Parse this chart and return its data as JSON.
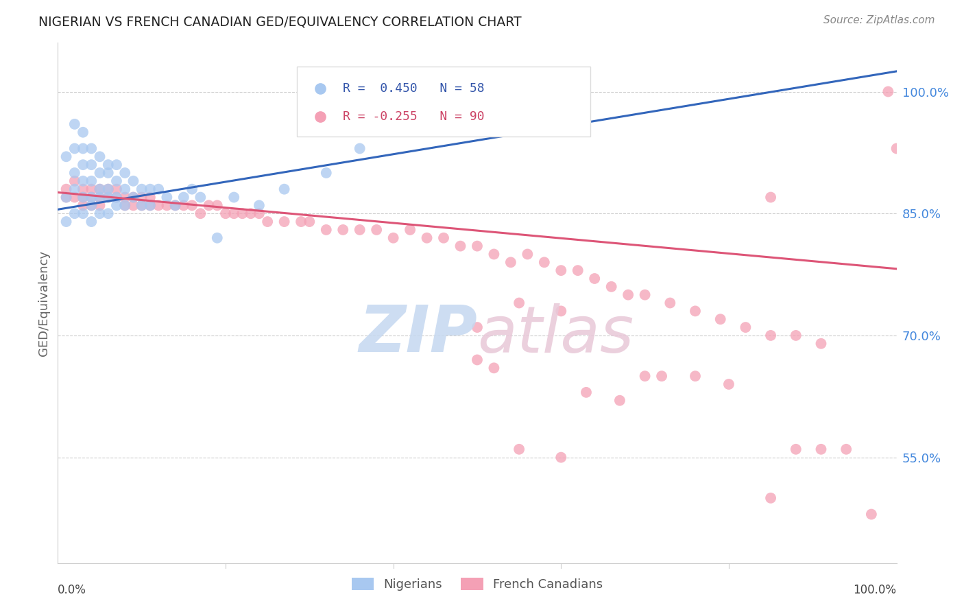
{
  "title": "NIGERIAN VS FRENCH CANADIAN GED/EQUIVALENCY CORRELATION CHART",
  "source": "Source: ZipAtlas.com",
  "ylabel": "GED/Equivalency",
  "ytick_labels": [
    "100.0%",
    "85.0%",
    "70.0%",
    "55.0%"
  ],
  "ytick_values": [
    1.0,
    0.85,
    0.7,
    0.55
  ],
  "blue_color": "#A8C8F0",
  "pink_color": "#F4A0B5",
  "blue_line_color": "#3366BB",
  "pink_line_color": "#DD5577",
  "blue_label": "Nigerians",
  "pink_label": "French Canadians",
  "blue_r": 0.45,
  "pink_r": -0.255,
  "blue_n": 58,
  "pink_n": 90,
  "xmin": 0.0,
  "xmax": 1.0,
  "ymin": 0.42,
  "ymax": 1.06,
  "nigerian_x": [
    0.01,
    0.01,
    0.01,
    0.02,
    0.02,
    0.02,
    0.02,
    0.02,
    0.03,
    0.03,
    0.03,
    0.03,
    0.03,
    0.03,
    0.04,
    0.04,
    0.04,
    0.04,
    0.04,
    0.04,
    0.05,
    0.05,
    0.05,
    0.05,
    0.05,
    0.06,
    0.06,
    0.06,
    0.06,
    0.06,
    0.07,
    0.07,
    0.07,
    0.07,
    0.08,
    0.08,
    0.08,
    0.09,
    0.09,
    0.1,
    0.1,
    0.11,
    0.11,
    0.12,
    0.13,
    0.14,
    0.15,
    0.16,
    0.17,
    0.19,
    0.21,
    0.24,
    0.27,
    0.32,
    0.36,
    0.4,
    0.46,
    0.58
  ],
  "nigerian_y": [
    0.92,
    0.87,
    0.84,
    0.96,
    0.93,
    0.9,
    0.88,
    0.85,
    0.95,
    0.93,
    0.91,
    0.89,
    0.87,
    0.85,
    0.93,
    0.91,
    0.89,
    0.87,
    0.86,
    0.84,
    0.92,
    0.9,
    0.88,
    0.87,
    0.85,
    0.91,
    0.9,
    0.88,
    0.87,
    0.85,
    0.91,
    0.89,
    0.87,
    0.86,
    0.9,
    0.88,
    0.86,
    0.89,
    0.87,
    0.88,
    0.86,
    0.88,
    0.86,
    0.88,
    0.87,
    0.86,
    0.87,
    0.88,
    0.87,
    0.82,
    0.87,
    0.86,
    0.88,
    0.9,
    0.93,
    0.96,
    0.98,
    1.0
  ],
  "french_x": [
    0.01,
    0.01,
    0.02,
    0.02,
    0.03,
    0.03,
    0.03,
    0.04,
    0.04,
    0.04,
    0.05,
    0.05,
    0.05,
    0.06,
    0.06,
    0.07,
    0.07,
    0.08,
    0.08,
    0.09,
    0.09,
    0.1,
    0.1,
    0.11,
    0.11,
    0.12,
    0.13,
    0.14,
    0.15,
    0.16,
    0.17,
    0.18,
    0.19,
    0.2,
    0.21,
    0.22,
    0.23,
    0.24,
    0.25,
    0.27,
    0.29,
    0.3,
    0.32,
    0.34,
    0.36,
    0.38,
    0.4,
    0.42,
    0.44,
    0.46,
    0.48,
    0.5,
    0.52,
    0.54,
    0.56,
    0.58,
    0.6,
    0.62,
    0.64,
    0.66,
    0.68,
    0.7,
    0.73,
    0.76,
    0.79,
    0.82,
    0.85,
    0.88,
    0.91,
    0.99,
    0.55,
    0.6,
    0.5,
    0.63,
    0.67,
    0.7,
    0.5,
    0.52,
    0.55,
    0.6,
    0.72,
    0.76,
    0.8,
    0.85,
    0.88,
    0.91,
    0.94,
    0.97,
    0.85,
    1.0
  ],
  "french_y": [
    0.88,
    0.87,
    0.89,
    0.87,
    0.88,
    0.87,
    0.86,
    0.88,
    0.87,
    0.86,
    0.88,
    0.87,
    0.86,
    0.88,
    0.87,
    0.88,
    0.87,
    0.87,
    0.86,
    0.87,
    0.86,
    0.87,
    0.86,
    0.87,
    0.86,
    0.86,
    0.86,
    0.86,
    0.86,
    0.86,
    0.85,
    0.86,
    0.86,
    0.85,
    0.85,
    0.85,
    0.85,
    0.85,
    0.84,
    0.84,
    0.84,
    0.84,
    0.83,
    0.83,
    0.83,
    0.83,
    0.82,
    0.83,
    0.82,
    0.82,
    0.81,
    0.81,
    0.8,
    0.79,
    0.8,
    0.79,
    0.78,
    0.78,
    0.77,
    0.76,
    0.75,
    0.75,
    0.74,
    0.73,
    0.72,
    0.71,
    0.7,
    0.7,
    0.69,
    1.0,
    0.74,
    0.73,
    0.71,
    0.63,
    0.62,
    0.65,
    0.67,
    0.66,
    0.56,
    0.55,
    0.65,
    0.65,
    0.64,
    0.5,
    0.56,
    0.56,
    0.56,
    0.48,
    0.87,
    0.93
  ],
  "blue_line_x0": 0.0,
  "blue_line_x1": 1.0,
  "blue_line_y0": 0.855,
  "blue_line_y1": 1.025,
  "pink_line_x0": 0.0,
  "pink_line_x1": 1.0,
  "pink_line_y0": 0.876,
  "pink_line_y1": 0.782
}
